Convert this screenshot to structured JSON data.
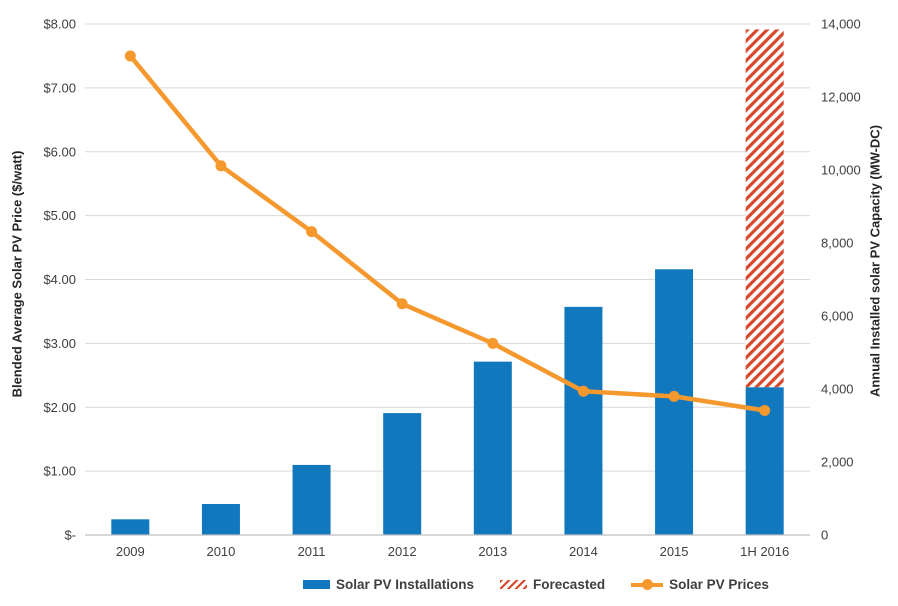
{
  "chart_data": {
    "type": "combo_bar_line",
    "categories": [
      "2009",
      "2010",
      "2011",
      "2012",
      "2013",
      "2014",
      "2015",
      "1H 2016"
    ],
    "series": [
      {
        "name": "Solar PV Installations",
        "type": "bar",
        "axis": "right",
        "values": [
          430,
          850,
          1920,
          3340,
          4750,
          6250,
          7280,
          4050
        ],
        "color_key": "bar_blue"
      },
      {
        "name": "Forecasted",
        "type": "bar_hatched_stacked",
        "axis": "right",
        "values": [
          0,
          0,
          0,
          0,
          0,
          0,
          0,
          9800
        ],
        "stacked_total_1h2016": 13850,
        "color_key": "forecast_red"
      },
      {
        "name": "Solar PV Prices",
        "type": "line",
        "axis": "left",
        "values": [
          7.5,
          5.78,
          4.75,
          3.62,
          3.0,
          2.25,
          2.17,
          1.95
        ],
        "color_key": "line_orange"
      }
    ],
    "left_axis": {
      "title": "Blended Average Solar PV Price ($/watt)",
      "min": 0,
      "max": 8,
      "tick_step": 1,
      "tick_labels_bottom_to_top": [
        "$-",
        "$1.00",
        "$2.00",
        "$3.00",
        "$4.00",
        "$5.00",
        "$6.00",
        "$7.00",
        "$8.00"
      ]
    },
    "right_axis": {
      "title": "Annual Installed solar PV Capacity (MW-DC)",
      "min": 0,
      "max": 14000,
      "tick_step": 2000,
      "tick_labels_bottom_to_top": [
        "0",
        "2,000",
        "4,000",
        "6,000",
        "8,000",
        "10,000",
        "12,000",
        "14,000"
      ]
    },
    "legend": {
      "position": "bottom",
      "items": [
        "Solar PV Installations",
        "Forecasted",
        "Solar PV Prices"
      ]
    },
    "grid": true,
    "colors": {
      "bar_blue": "#1178bd",
      "forecast_red": "#d8472b",
      "line_orange": "#f5992e",
      "gridline": "#d9d9d9",
      "axis_line": "#bfbfbf",
      "text": "#404040"
    }
  }
}
